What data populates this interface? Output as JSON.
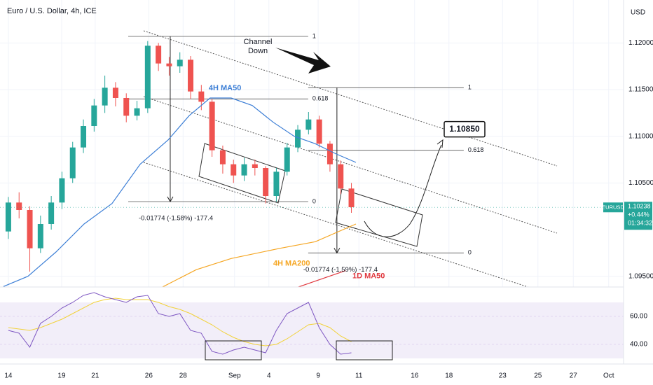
{
  "chart_data": {
    "type": "candlestick",
    "title": "Euro / U.S. Dollar, 4h, ICE",
    "currency": "USD",
    "up_color": "#26a69a",
    "down_color": "#ef5350",
    "x": [
      0,
      1,
      2,
      3,
      4,
      5,
      6,
      7,
      8,
      9,
      10,
      11,
      12,
      13,
      14,
      15,
      16,
      17,
      18,
      19,
      20,
      21,
      22,
      23,
      24,
      25,
      26,
      27,
      28,
      29,
      30,
      31,
      32
    ],
    "open": [
      1.0998,
      1.1029,
      1.1021,
      1.098,
      1.1006,
      1.1029,
      1.1055,
      1.1088,
      1.1111,
      1.1133,
      1.1152,
      1.1141,
      1.1122,
      1.113,
      1.1197,
      1.1178,
      1.1175,
      1.1182,
      1.1148,
      1.1137,
      1.1085,
      1.107,
      1.1058,
      1.107,
      1.1066,
      1.1036,
      1.1062,
      1.1088,
      1.1107,
      1.1118,
      1.1092,
      1.107,
      1.1044
    ],
    "high": [
      1.1035,
      1.104,
      1.1025,
      1.1015,
      1.1036,
      1.1062,
      1.1094,
      1.1118,
      1.114,
      1.1165,
      1.1158,
      1.1146,
      1.1138,
      1.1202,
      1.12,
      1.1185,
      1.119,
      1.1186,
      1.1155,
      1.114,
      1.109,
      1.1075,
      1.1077,
      1.1075,
      1.1068,
      1.1066,
      1.1093,
      1.1112,
      1.1126,
      1.1122,
      1.1095,
      1.1074,
      1.105
    ],
    "low": [
      1.099,
      1.1012,
      1.0955,
      1.0975,
      1.1,
      1.1022,
      1.105,
      1.1082,
      1.1105,
      1.1125,
      1.1132,
      1.1115,
      1.1117,
      1.1125,
      1.117,
      1.1165,
      1.1168,
      1.114,
      1.1128,
      1.1078,
      1.106,
      1.105,
      1.1052,
      1.1058,
      1.1028,
      1.103,
      1.1058,
      1.1083,
      1.1102,
      1.1088,
      1.1062,
      1.1038,
      1.1018
    ],
    "close": [
      1.1029,
      1.1021,
      1.098,
      1.1006,
      1.1029,
      1.1055,
      1.1088,
      1.1111,
      1.1133,
      1.1152,
      1.1141,
      1.1122,
      1.113,
      1.1197,
      1.1178,
      1.1175,
      1.1182,
      1.1148,
      1.1137,
      1.1085,
      1.107,
      1.1058,
      1.107,
      1.1066,
      1.1036,
      1.1062,
      1.1088,
      1.1107,
      1.1118,
      1.1092,
      1.107,
      1.1044,
      1.1024
    ],
    "xlim": [
      -0.78,
      57.39
    ],
    "xticks": [
      {
        "value": 0,
        "label": "14"
      },
      {
        "value": 4.97,
        "label": "19"
      },
      {
        "value": 8.1,
        "label": "21"
      },
      {
        "value": 13.1,
        "label": "26"
      },
      {
        "value": 16.3,
        "label": "28"
      },
      {
        "value": 21.1,
        "label": "Sep"
      },
      {
        "value": 24.3,
        "label": "4"
      },
      {
        "value": 28.9,
        "label": "9"
      },
      {
        "value": 32.7,
        "label": "11"
      },
      {
        "value": 37.9,
        "label": "16"
      },
      {
        "value": 41.1,
        "label": "18"
      },
      {
        "value": 46.1,
        "label": "23"
      },
      {
        "value": 49.4,
        "label": "25"
      },
      {
        "value": 52.7,
        "label": "27"
      },
      {
        "value": 56.0,
        "label": "Oct"
      }
    ],
    "ylim": [
      1.0931,
      1.1246
    ],
    "yticks": [
      {
        "value": 1.12,
        "label": "1.12000"
      },
      {
        "value": 1.115,
        "label": "1.11500"
      },
      {
        "value": 1.11,
        "label": "1.11000"
      },
      {
        "value": 1.105,
        "label": "1.10500"
      },
      {
        "value": 1.095,
        "label": "1.09500"
      }
    ],
    "lines": [
      {
        "name": "4H MA50",
        "color": "#3d7fd6",
        "x": [
          -0.46,
          1.83,
          4.44,
          7.06,
          9.67,
          12.29,
          14.9,
          16.86,
          18.82,
          20.78,
          22.75,
          24.71,
          26.67,
          28.63,
          30.59,
          32.42
        ],
        "values": [
          1.0939,
          1.095,
          1.0976,
          1.1006,
          1.1028,
          1.107,
          1.1096,
          1.1122,
          1.1141,
          1.1141,
          1.1133,
          1.1115,
          1.11,
          1.1092,
          1.1081,
          1.1072
        ]
      },
      {
        "name": "4H MA200",
        "color": "#f5a623",
        "x": [
          14.12,
          17.52,
          20.78,
          25.36,
          28.63,
          32.42
        ],
        "values": [
          1.0937,
          1.0957,
          1.0969,
          1.098,
          1.0987,
          1.1006
        ]
      },
      {
        "name": "1D MA50",
        "color": "#e0383e",
        "x": [
          26.67,
          31.44
        ],
        "values": [
          1.0937,
          1.0956
        ]
      }
    ],
    "note": [
      "Channel",
      "Down"
    ],
    "target": {
      "value": 1.1085,
      "label": "1.10850"
    },
    "fibs": [
      {
        "x": [
          11.18,
          27.97
        ],
        "measure_x": 15.1,
        "levels": [
          {
            "value": 1.1207,
            "label": "1"
          },
          {
            "value": 1.114,
            "label": "0.618"
          },
          {
            "value": 1.103,
            "label": "0"
          }
        ],
        "measure": "-0.01774 (-1.58%) -177.4"
      },
      {
        "x": [
          27.97,
          42.48
        ],
        "measure_x": 30.65,
        "levels": [
          {
            "value": 1.1152,
            "label": "1"
          },
          {
            "value": 1.1085,
            "label": "0.618"
          },
          {
            "value": 1.0975,
            "label": "0"
          }
        ],
        "measure": "-0.01774 (-1.59%) -177.4"
      }
    ],
    "price_tag": {
      "symbol": "EURUSD",
      "value": 1.10238,
      "change": "+0.44%",
      "countdown": "01:34:32",
      "color": "#26a69a"
    },
    "rsi": {
      "ylim": [
        28.5,
        81
      ],
      "yticks": [
        {
          "value": 60,
          "label": "60.00"
        },
        {
          "value": 40,
          "label": "40.00"
        }
      ],
      "band": [
        30,
        70
      ],
      "line_color": "#7e57c2",
      "ma_color": "#f2d23a",
      "values": [
        50,
        48,
        38,
        55,
        60,
        66,
        70,
        75,
        77,
        74,
        72,
        70,
        74,
        75,
        62,
        60,
        62,
        50,
        48,
        35,
        33,
        36,
        38,
        36,
        34,
        50,
        62,
        66,
        70,
        52,
        40,
        33,
        34
      ],
      "ma": [
        52,
        51,
        50,
        52,
        55,
        58,
        62,
        66,
        70,
        72,
        73,
        72,
        72,
        72,
        70,
        67,
        65,
        62,
        58,
        54,
        49,
        45,
        42,
        40,
        39,
        40,
        44,
        49,
        54,
        55,
        52,
        46,
        42
      ]
    }
  }
}
